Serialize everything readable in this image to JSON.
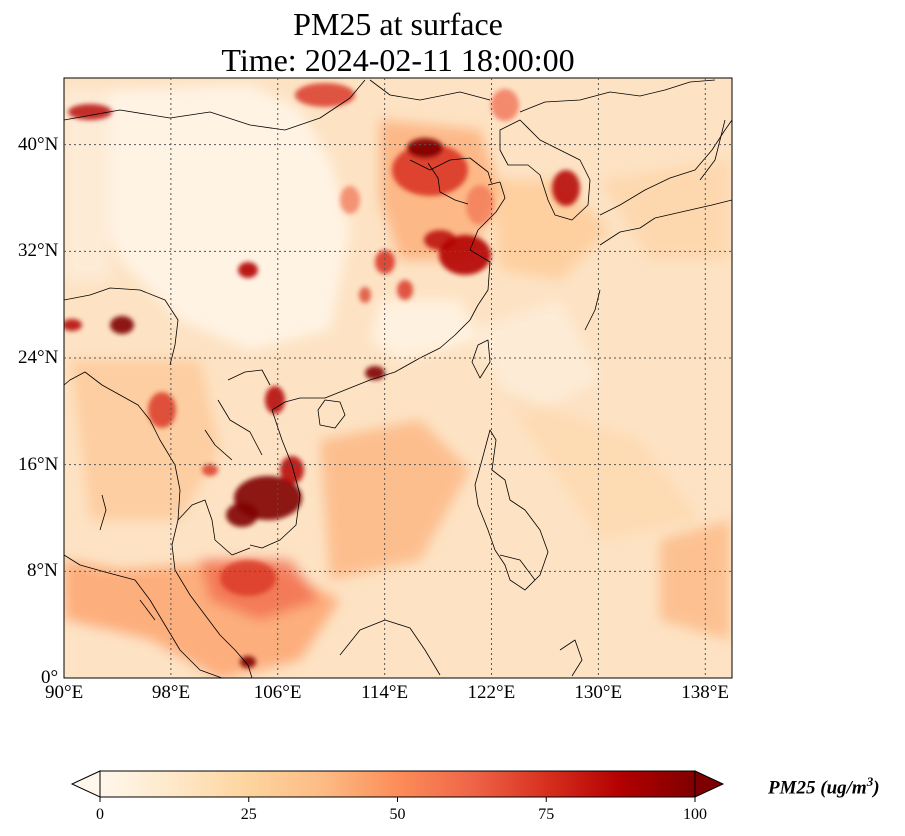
{
  "title": {
    "line1": "PM25 at surface",
    "line2": "Time: 2024-02-11 18:00:00"
  },
  "map": {
    "extent": {
      "lon_min": 90,
      "lon_max": 140,
      "lat_min": 0,
      "lat_max": 45
    },
    "projection": "PlateCarree",
    "gridlines": true,
    "colormap": "OrRd",
    "lon_ticks": [
      {
        "value": 90,
        "label": "90°E"
      },
      {
        "value": 98,
        "label": "98°E"
      },
      {
        "value": 106,
        "label": "106°E"
      },
      {
        "value": 114,
        "label": "114°E"
      },
      {
        "value": 122,
        "label": "122°E"
      },
      {
        "value": 130,
        "label": "130°E"
      },
      {
        "value": 138,
        "label": "138°E"
      }
    ],
    "lat_ticks": [
      {
        "value": 0,
        "label": "0°"
      },
      {
        "value": 8,
        "label": "8°N"
      },
      {
        "value": 16,
        "label": "16°N"
      },
      {
        "value": 24,
        "label": "24°N"
      },
      {
        "value": 32,
        "label": "32°N"
      },
      {
        "value": 40,
        "label": "40°N"
      }
    ]
  },
  "colorbar": {
    "min": 0,
    "max": 100,
    "extend": "both",
    "ticks": [
      {
        "value": 0,
        "label": "0"
      },
      {
        "value": 25,
        "label": "25"
      },
      {
        "value": 50,
        "label": "50"
      },
      {
        "value": 75,
        "label": "75"
      },
      {
        "value": 100,
        "label": "100"
      }
    ],
    "label_text": "PM25 (ug/m",
    "label_sup": "3",
    "label_close": ")",
    "colors": [
      "#fff7ec",
      "#fee8c8",
      "#fdd49e",
      "#fdbb84",
      "#fc8d59",
      "#ef6548",
      "#d7301f",
      "#b30000",
      "#7f0000"
    ]
  }
}
